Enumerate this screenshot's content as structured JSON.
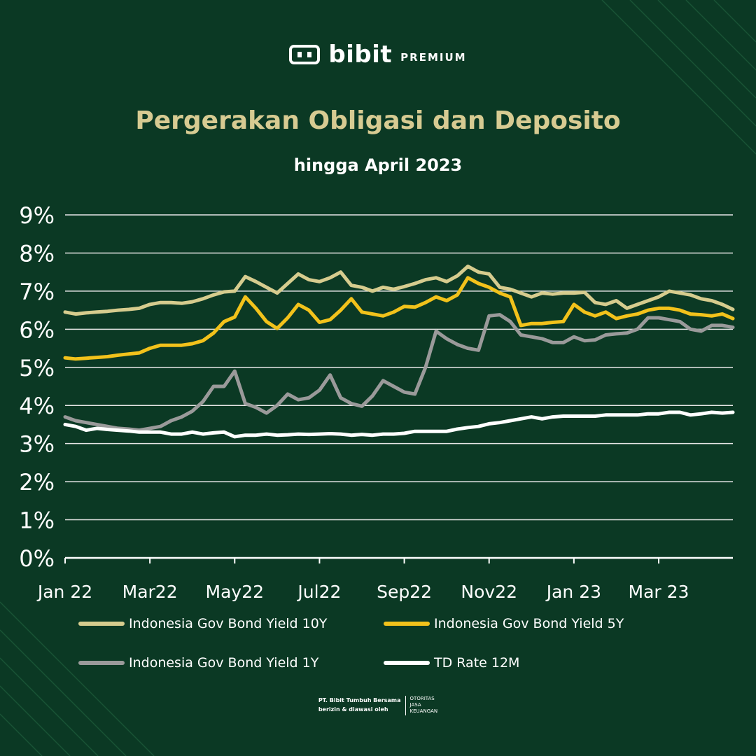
{
  "brand": {
    "name": "bibit",
    "tag": "PREMIUM",
    "icon": "bibit-logo-icon"
  },
  "header": {
    "title": "Pergerakan Obligasi dan Deposito",
    "subtitle": "hingga April 2023"
  },
  "footer": {
    "company": "PT. Bibit Tumbuh Bersama",
    "regulated": "berizin & diawasi oleh",
    "ojk_line1": "OTORITAS",
    "ojk_line2": "JASA",
    "ojk_line3": "KEUANGAN"
  },
  "chart_data": {
    "type": "line",
    "x_tick_labels": [
      "Jan 22",
      "Mar22",
      "May22",
      "Jul22",
      "Sep22",
      "Nov22",
      "Jan 23",
      "Mar 23"
    ],
    "y_tick_labels": [
      "0%",
      "1%",
      "2%",
      "3%",
      "4%",
      "5%",
      "6%",
      "7%",
      "8%",
      "9%"
    ],
    "ylim": [
      0,
      9
    ],
    "x_range_months": [
      0,
      15.75
    ],
    "grid": true,
    "legend_position": "bottom",
    "series": [
      {
        "name": "Indonesia Gov Bond Yield 10Y",
        "color": "#d6cc8e",
        "x": [
          0,
          0.25,
          0.5,
          0.75,
          1,
          1.25,
          1.5,
          1.75,
          2,
          2.25,
          2.5,
          2.75,
          3,
          3.25,
          3.5,
          3.75,
          4,
          4.25,
          4.5,
          4.75,
          5,
          5.25,
          5.5,
          5.75,
          6,
          6.25,
          6.5,
          6.75,
          7,
          7.25,
          7.5,
          7.75,
          8,
          8.25,
          8.5,
          8.75,
          9,
          9.25,
          9.5,
          9.75,
          10,
          10.25,
          10.5,
          10.75,
          11,
          11.25,
          11.5,
          11.75,
          12,
          12.25,
          12.5,
          12.75,
          13,
          13.25,
          13.5,
          13.75,
          14,
          14.25,
          14.5,
          14.75,
          15,
          15.25,
          15.5,
          15.75
        ],
        "values": [
          6.45,
          6.4,
          6.43,
          6.45,
          6.47,
          6.5,
          6.52,
          6.55,
          6.65,
          6.7,
          6.7,
          6.68,
          6.72,
          6.8,
          6.9,
          6.98,
          7.0,
          7.38,
          7.25,
          7.1,
          6.95,
          7.2,
          7.45,
          7.3,
          7.25,
          7.35,
          7.5,
          7.15,
          7.1,
          7.0,
          7.1,
          7.05,
          7.12,
          7.2,
          7.3,
          7.35,
          7.25,
          7.4,
          7.65,
          7.5,
          7.45,
          7.1,
          7.05,
          6.95,
          6.85,
          6.95,
          6.92,
          6.95,
          6.95,
          6.97,
          6.7,
          6.65,
          6.75,
          6.55,
          6.65,
          6.75,
          6.85,
          7.0,
          6.95,
          6.9,
          6.8,
          6.75,
          6.65,
          6.52
        ]
      },
      {
        "name": "Indonesia Gov Bond Yield 5Y",
        "color": "#f2c21b",
        "x": [
          0,
          0.25,
          0.5,
          0.75,
          1,
          1.25,
          1.5,
          1.75,
          2,
          2.25,
          2.5,
          2.75,
          3,
          3.25,
          3.5,
          3.75,
          4,
          4.25,
          4.5,
          4.75,
          5,
          5.25,
          5.5,
          5.75,
          6,
          6.25,
          6.5,
          6.75,
          7,
          7.25,
          7.5,
          7.75,
          8,
          8.25,
          8.5,
          8.75,
          9,
          9.25,
          9.5,
          9.75,
          10,
          10.25,
          10.5,
          10.75,
          11,
          11.25,
          11.5,
          11.75,
          12,
          12.25,
          12.5,
          12.75,
          13,
          13.25,
          13.5,
          13.75,
          14,
          14.25,
          14.5,
          14.75,
          15,
          15.25,
          15.5,
          15.75
        ],
        "values": [
          5.25,
          5.22,
          5.24,
          5.26,
          5.28,
          5.32,
          5.35,
          5.38,
          5.5,
          5.58,
          5.58,
          5.58,
          5.62,
          5.7,
          5.9,
          6.2,
          6.32,
          6.85,
          6.55,
          6.2,
          6.02,
          6.3,
          6.65,
          6.5,
          6.18,
          6.25,
          6.5,
          6.8,
          6.45,
          6.4,
          6.35,
          6.45,
          6.6,
          6.58,
          6.7,
          6.85,
          6.75,
          6.9,
          7.35,
          7.2,
          7.1,
          6.95,
          6.85,
          6.1,
          6.15,
          6.15,
          6.18,
          6.2,
          6.65,
          6.45,
          6.35,
          6.45,
          6.28,
          6.35,
          6.4,
          6.5,
          6.55,
          6.55,
          6.5,
          6.4,
          6.38,
          6.35,
          6.4,
          6.28
        ]
      },
      {
        "name": "Indonesia Gov Bond Yield 1Y",
        "color": "#9a9a9a",
        "x": [
          0,
          0.25,
          0.5,
          0.75,
          1,
          1.25,
          1.5,
          1.75,
          2,
          2.25,
          2.5,
          2.75,
          3,
          3.25,
          3.5,
          3.75,
          4,
          4.25,
          4.5,
          4.75,
          5,
          5.25,
          5.5,
          5.75,
          6,
          6.25,
          6.5,
          6.75,
          7,
          7.25,
          7.5,
          7.75,
          8,
          8.25,
          8.5,
          8.75,
          9,
          9.25,
          9.5,
          9.75,
          10,
          10.25,
          10.5,
          10.75,
          11,
          11.25,
          11.5,
          11.75,
          12,
          12.25,
          12.5,
          12.75,
          13,
          13.25,
          13.5,
          13.75,
          14,
          14.25,
          14.5,
          14.75,
          15,
          15.25,
          15.5,
          15.75
        ],
        "values": [
          3.7,
          3.6,
          3.55,
          3.5,
          3.45,
          3.4,
          3.38,
          3.35,
          3.4,
          3.45,
          3.6,
          3.7,
          3.85,
          4.1,
          4.5,
          4.5,
          4.9,
          4.05,
          3.95,
          3.8,
          4.0,
          4.3,
          4.15,
          4.2,
          4.4,
          4.8,
          4.2,
          4.05,
          3.98,
          4.25,
          4.65,
          4.5,
          4.35,
          4.3,
          5.0,
          5.95,
          5.75,
          5.6,
          5.5,
          5.45,
          6.35,
          6.38,
          6.2,
          5.85,
          5.8,
          5.75,
          5.65,
          5.65,
          5.8,
          5.7,
          5.72,
          5.85,
          5.88,
          5.9,
          6.0,
          6.3,
          6.3,
          6.25,
          6.2,
          6.0,
          5.95,
          6.1,
          6.1,
          6.05
        ]
      },
      {
        "name": "TD Rate 12M",
        "color": "#ffffff",
        "x": [
          0,
          0.25,
          0.5,
          0.75,
          1,
          1.25,
          1.5,
          1.75,
          2,
          2.25,
          2.5,
          2.75,
          3,
          3.25,
          3.5,
          3.75,
          4,
          4.25,
          4.5,
          4.75,
          5,
          5.25,
          5.5,
          5.75,
          6,
          6.25,
          6.5,
          6.75,
          7,
          7.25,
          7.5,
          7.75,
          8,
          8.25,
          8.5,
          8.75,
          9,
          9.25,
          9.5,
          9.75,
          10,
          10.25,
          10.5,
          10.75,
          11,
          11.25,
          11.5,
          11.75,
          12,
          12.25,
          12.5,
          12.75,
          13,
          13.25,
          13.5,
          13.75,
          14,
          14.25,
          14.5,
          14.75,
          15,
          15.25,
          15.5,
          15.75
        ],
        "values": [
          3.5,
          3.45,
          3.35,
          3.4,
          3.37,
          3.35,
          3.33,
          3.3,
          3.3,
          3.3,
          3.25,
          3.25,
          3.3,
          3.25,
          3.28,
          3.3,
          3.18,
          3.22,
          3.22,
          3.25,
          3.22,
          3.23,
          3.25,
          3.24,
          3.25,
          3.26,
          3.25,
          3.22,
          3.24,
          3.22,
          3.25,
          3.25,
          3.27,
          3.32,
          3.32,
          3.32,
          3.32,
          3.38,
          3.42,
          3.45,
          3.52,
          3.55,
          3.6,
          3.65,
          3.7,
          3.65,
          3.7,
          3.72,
          3.72,
          3.72,
          3.72,
          3.75,
          3.75,
          3.75,
          3.75,
          3.78,
          3.78,
          3.82,
          3.82,
          3.75,
          3.78,
          3.82,
          3.8,
          3.82
        ]
      }
    ]
  }
}
